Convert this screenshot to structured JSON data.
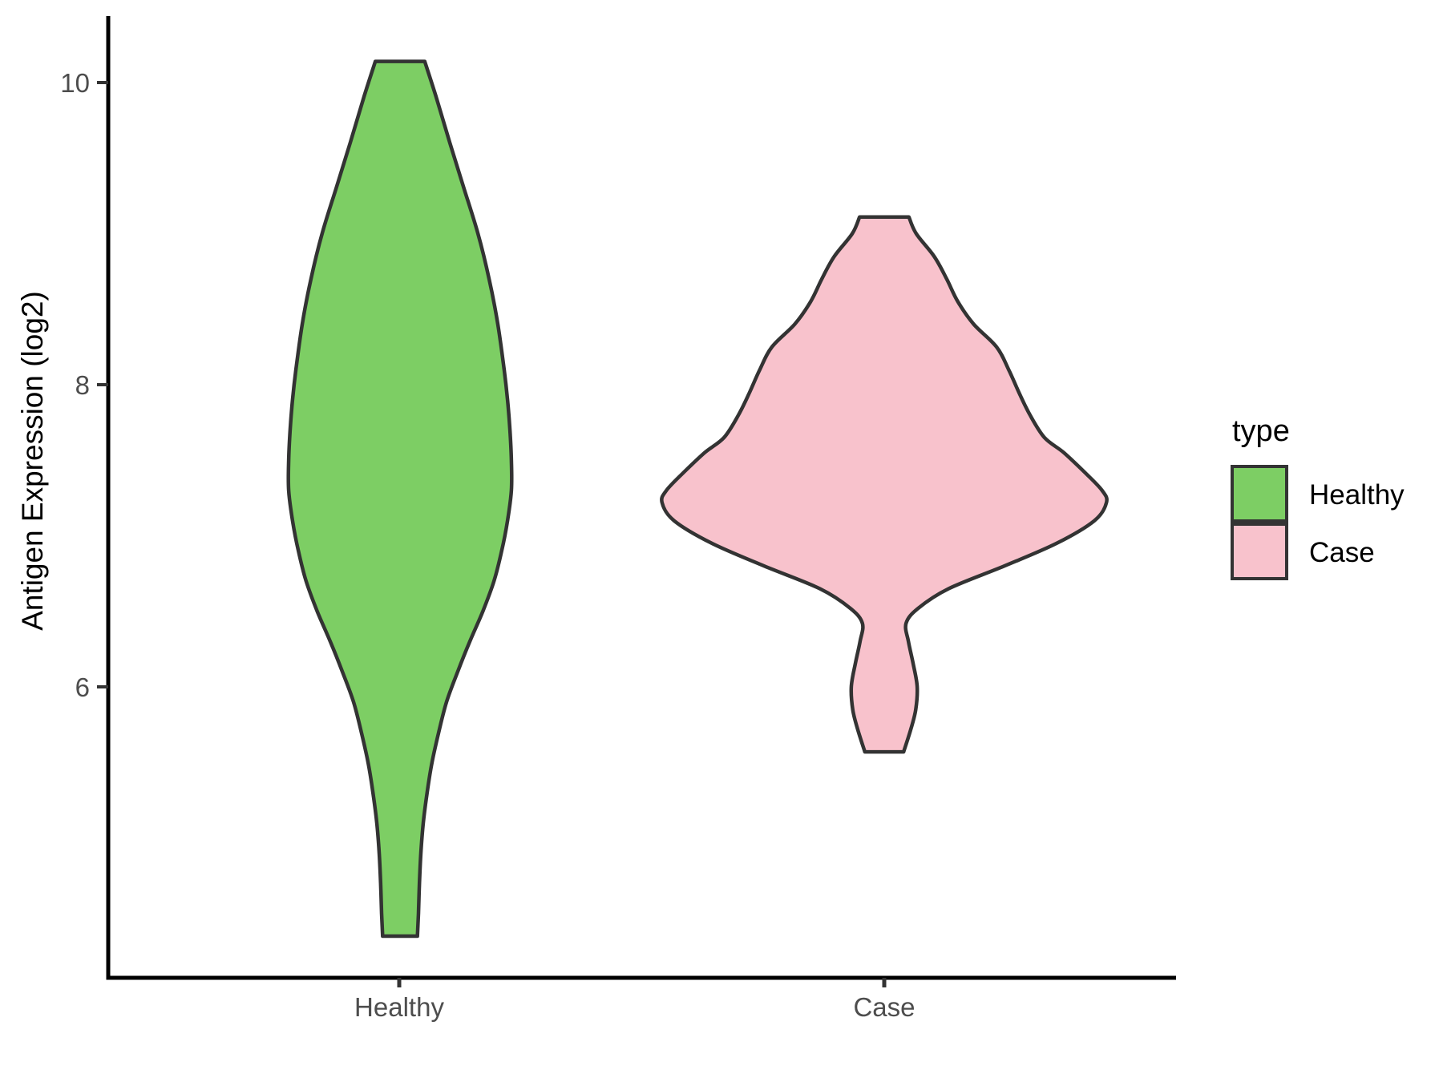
{
  "chart_data": {
    "type": "violin",
    "title": "",
    "xlabel": "",
    "ylabel": "Antigen Expression (log2)",
    "categories": [
      "Healthy",
      "Case"
    ],
    "y_ticks": [
      10,
      8,
      6
    ],
    "y_tick_labels": [
      "10",
      "8",
      "6"
    ],
    "ylim_visible": [
      4.1,
      10.5
    ],
    "grid": false,
    "background_color": "#ffffff",
    "axis_color": "#000000",
    "outline_color": "#333333",
    "tick_label_color": "#4d4d4d",
    "legend": {
      "title": "type",
      "position": "right",
      "entries": [
        {
          "label": "Healthy",
          "color": "#7dce64"
        },
        {
          "label": "Case",
          "color": "#f8c2cc"
        }
      ]
    },
    "series": [
      {
        "name": "Healthy",
        "fill": "#7dce64",
        "value_range": [
          4.35,
          10.14
        ],
        "peak_value": 7.4,
        "profile_note": "v = Antigen Expression (log2); w = violin half-width as fraction of category spacing",
        "profile": [
          {
            "v": 10.14,
            "w": 0.051
          },
          {
            "v": 9.9,
            "w": 0.075
          },
          {
            "v": 9.6,
            "w": 0.103
          },
          {
            "v": 9.3,
            "w": 0.132
          },
          {
            "v": 9.0,
            "w": 0.161
          },
          {
            "v": 8.7,
            "w": 0.184
          },
          {
            "v": 8.4,
            "w": 0.202
          },
          {
            "v": 8.1,
            "w": 0.215
          },
          {
            "v": 7.9,
            "w": 0.222
          },
          {
            "v": 7.7,
            "w": 0.227
          },
          {
            "v": 7.5,
            "w": 0.23
          },
          {
            "v": 7.3,
            "w": 0.23
          },
          {
            "v": 7.1,
            "w": 0.222
          },
          {
            "v": 6.9,
            "w": 0.21
          },
          {
            "v": 6.7,
            "w": 0.194
          },
          {
            "v": 6.5,
            "w": 0.171
          },
          {
            "v": 6.3,
            "w": 0.144
          },
          {
            "v": 6.1,
            "w": 0.119
          },
          {
            "v": 5.9,
            "w": 0.096
          },
          {
            "v": 5.7,
            "w": 0.08
          },
          {
            "v": 5.5,
            "w": 0.066
          },
          {
            "v": 5.3,
            "w": 0.056
          },
          {
            "v": 5.1,
            "w": 0.048
          },
          {
            "v": 4.9,
            "w": 0.043
          },
          {
            "v": 4.7,
            "w": 0.04
          },
          {
            "v": 4.5,
            "w": 0.038
          },
          {
            "v": 4.35,
            "w": 0.036
          }
        ]
      },
      {
        "name": "Case",
        "fill": "#f8c2cc",
        "value_range": [
          5.57,
          9.11
        ],
        "peak_value": 7.25,
        "profile_note": "v = Antigen Expression (log2); w = violin half-width as fraction of category spacing",
        "profile": [
          {
            "v": 9.11,
            "w": 0.051
          },
          {
            "v": 9.0,
            "w": 0.066
          },
          {
            "v": 8.85,
            "w": 0.103
          },
          {
            "v": 8.7,
            "w": 0.129
          },
          {
            "v": 8.55,
            "w": 0.152
          },
          {
            "v": 8.4,
            "w": 0.185
          },
          {
            "v": 8.25,
            "w": 0.232
          },
          {
            "v": 8.1,
            "w": 0.257
          },
          {
            "v": 7.95,
            "w": 0.278
          },
          {
            "v": 7.8,
            "w": 0.301
          },
          {
            "v": 7.65,
            "w": 0.331
          },
          {
            "v": 7.55,
            "w": 0.371
          },
          {
            "v": 7.42,
            "w": 0.414
          },
          {
            "v": 7.3,
            "w": 0.45
          },
          {
            "v": 7.22,
            "w": 0.459
          },
          {
            "v": 7.1,
            "w": 0.434
          },
          {
            "v": 6.95,
            "w": 0.356
          },
          {
            "v": 6.8,
            "w": 0.248
          },
          {
            "v": 6.65,
            "w": 0.133
          },
          {
            "v": 6.52,
            "w": 0.07
          },
          {
            "v": 6.42,
            "w": 0.045
          },
          {
            "v": 6.3,
            "w": 0.05
          },
          {
            "v": 6.15,
            "w": 0.06
          },
          {
            "v": 6.0,
            "w": 0.068
          },
          {
            "v": 5.85,
            "w": 0.065
          },
          {
            "v": 5.72,
            "w": 0.055
          },
          {
            "v": 5.57,
            "w": 0.04
          }
        ]
      }
    ]
  }
}
